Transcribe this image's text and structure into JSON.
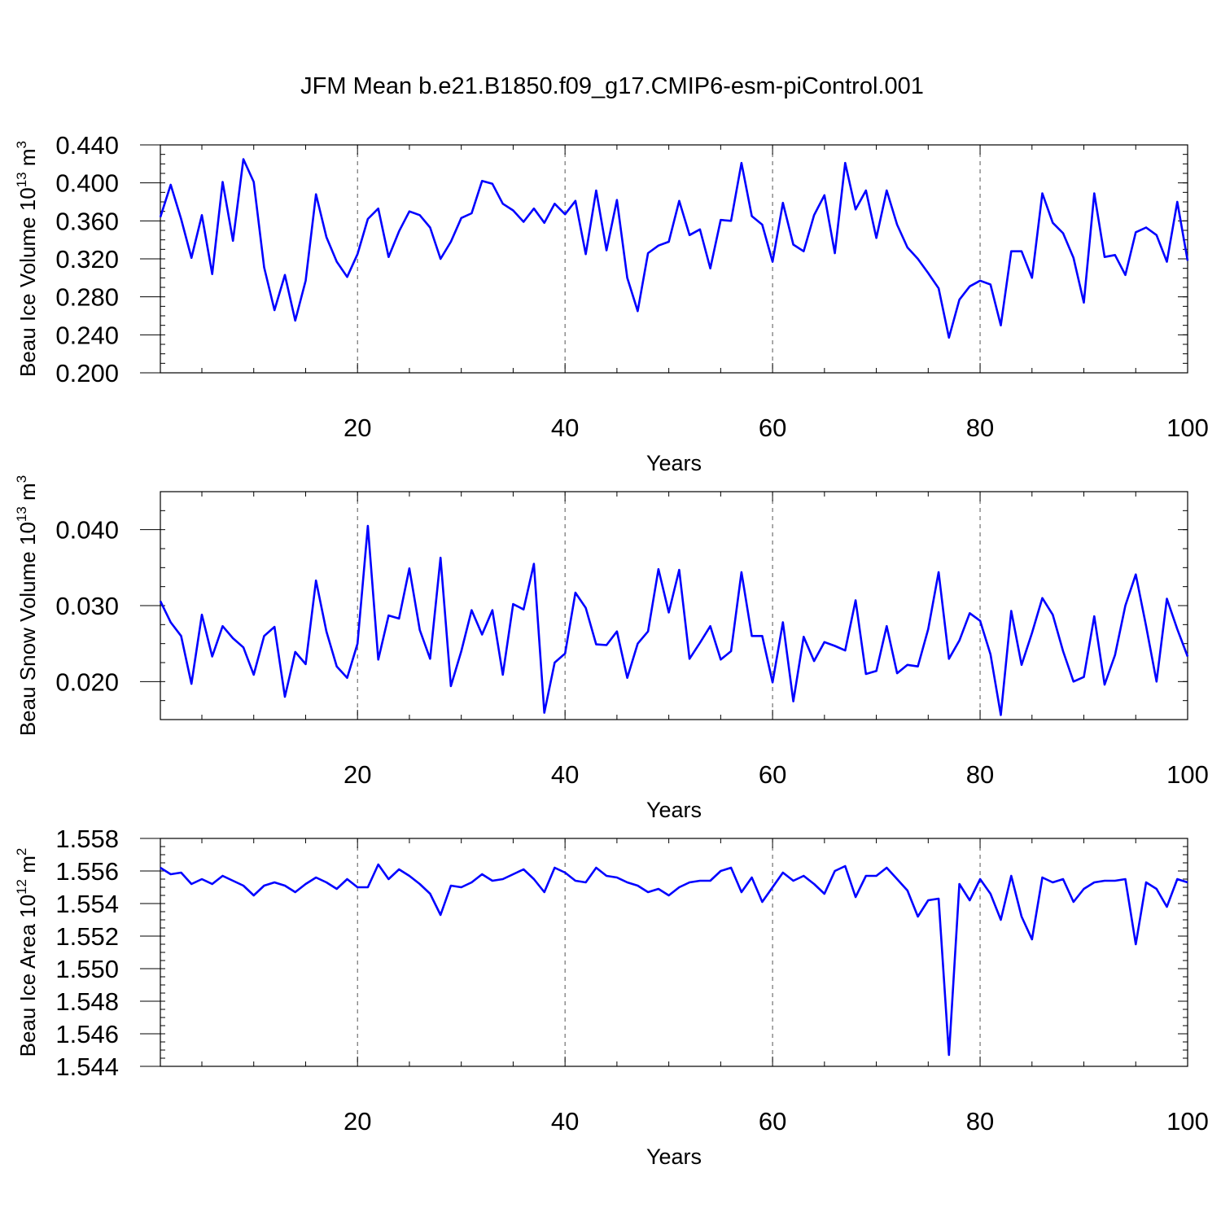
{
  "title": "JFM Mean b.e21.B1850.f09_g17.CMIP6-esm-piControl.001",
  "line_color": "#0000ff",
  "chart_data": [
    {
      "type": "line",
      "ylabel_main": "Beau Ice Volume 10",
      "ylabel_exp": "13",
      "ylabel_unit": " m",
      "ylabel_unit_exp": "3",
      "xlabel": "Years",
      "xlim": [
        1,
        100
      ],
      "ylim": [
        0.2,
        0.44
      ],
      "xticks": [
        20,
        40,
        60,
        80,
        100
      ],
      "yticks": [
        0.2,
        0.24,
        0.28,
        0.32,
        0.36,
        0.4,
        0.44
      ],
      "yticklabels": [
        "0.200",
        "0.240",
        "0.280",
        "0.320",
        "0.360",
        "0.400",
        "0.440"
      ],
      "yminor": 0.01,
      "grid_x_dashed": [
        20,
        40,
        60,
        80
      ],
      "series": [
        {
          "name": "Beau Ice Volume",
          "x_start": 1,
          "values": [
            0.364,
            0.398,
            0.362,
            0.321,
            0.366,
            0.304,
            0.401,
            0.339,
            0.425,
            0.401,
            0.311,
            0.266,
            0.303,
            0.255,
            0.297,
            0.388,
            0.343,
            0.317,
            0.301,
            0.325,
            0.362,
            0.373,
            0.322,
            0.349,
            0.37,
            0.366,
            0.353,
            0.32,
            0.338,
            0.363,
            0.368,
            0.402,
            0.399,
            0.378,
            0.371,
            0.359,
            0.373,
            0.358,
            0.378,
            0.367,
            0.381,
            0.325,
            0.392,
            0.329,
            0.382,
            0.3,
            0.265,
            0.326,
            0.334,
            0.338,
            0.381,
            0.345,
            0.351,
            0.31,
            0.361,
            0.36,
            0.421,
            0.365,
            0.356,
            0.317,
            0.379,
            0.335,
            0.328,
            0.366,
            0.387,
            0.326,
            0.421,
            0.372,
            0.392,
            0.342,
            0.392,
            0.356,
            0.332,
            0.32,
            0.305,
            0.289,
            0.237,
            0.277,
            0.291,
            0.297,
            0.293,
            0.25,
            0.328,
            0.328,
            0.3,
            0.389,
            0.358,
            0.347,
            0.321,
            0.274,
            0.389,
            0.322,
            0.324,
            0.303,
            0.348,
            0.353,
            0.345,
            0.317,
            0.38,
            0.318
          ]
        }
      ]
    },
    {
      "type": "line",
      "ylabel_main": "Beau Snow Volume 10",
      "ylabel_exp": "13",
      "ylabel_unit": " m",
      "ylabel_unit_exp": "3",
      "xlabel": "Years",
      "xlim": [
        1,
        100
      ],
      "ylim": [
        0.015,
        0.045
      ],
      "xticks": [
        20,
        40,
        60,
        80,
        100
      ],
      "yticks": [
        0.02,
        0.03,
        0.04
      ],
      "yticklabels": [
        "0.020",
        "0.030",
        "0.040"
      ],
      "yminor": 0.0025,
      "grid_x_dashed": [
        20,
        40,
        60,
        80
      ],
      "series": [
        {
          "name": "Beau Snow Volume",
          "x_start": 1,
          "values": [
            0.0306,
            0.0278,
            0.026,
            0.0197,
            0.0288,
            0.0233,
            0.0273,
            0.0257,
            0.0245,
            0.0209,
            0.026,
            0.0272,
            0.018,
            0.0239,
            0.0223,
            0.0333,
            0.0266,
            0.022,
            0.0205,
            0.025,
            0.0405,
            0.0229,
            0.0287,
            0.0283,
            0.0349,
            0.0268,
            0.023,
            0.0363,
            0.0194,
            0.024,
            0.0294,
            0.0262,
            0.0294,
            0.0209,
            0.0302,
            0.0295,
            0.0355,
            0.0159,
            0.0225,
            0.0237,
            0.0317,
            0.0297,
            0.0249,
            0.0248,
            0.0266,
            0.0205,
            0.025,
            0.0266,
            0.0348,
            0.0291,
            0.0347,
            0.023,
            0.0251,
            0.0273,
            0.0229,
            0.024,
            0.0344,
            0.026,
            0.026,
            0.0199,
            0.0278,
            0.0174,
            0.0259,
            0.0227,
            0.0252,
            0.0247,
            0.0241,
            0.0307,
            0.021,
            0.0214,
            0.0273,
            0.0211,
            0.0222,
            0.022,
            0.0269,
            0.0344,
            0.023,
            0.0254,
            0.029,
            0.028,
            0.0236,
            0.0156,
            0.0293,
            0.0222,
            0.0264,
            0.031,
            0.0288,
            0.024,
            0.02,
            0.0206,
            0.0286,
            0.0196,
            0.0235,
            0.03,
            0.0341,
            0.0273,
            0.02,
            0.0309,
            0.0269,
            0.0233
          ]
        }
      ]
    },
    {
      "type": "line",
      "ylabel_main": "Beau Ice Area 10",
      "ylabel_exp": "12",
      "ylabel_unit": " m",
      "ylabel_unit_exp": "2",
      "xlabel": "Years",
      "xlim": [
        1,
        100
      ],
      "ylim": [
        1.544,
        1.558
      ],
      "xticks": [
        20,
        40,
        60,
        80,
        100
      ],
      "yticks": [
        1.544,
        1.546,
        1.548,
        1.55,
        1.552,
        1.554,
        1.556,
        1.558
      ],
      "yticklabels": [
        "1.544",
        "1.546",
        "1.548",
        "1.550",
        "1.552",
        "1.554",
        "1.556",
        "1.558"
      ],
      "yminor": 0.0005,
      "grid_x_dashed": [
        20,
        40,
        60,
        80
      ],
      "series": [
        {
          "name": "Beau Ice Area",
          "x_start": 1,
          "values": [
            1.5562,
            1.5558,
            1.5559,
            1.5552,
            1.5555,
            1.5552,
            1.5557,
            1.5554,
            1.5551,
            1.5545,
            1.5551,
            1.5553,
            1.5551,
            1.5547,
            1.5552,
            1.5556,
            1.5553,
            1.5549,
            1.5555,
            1.555,
            1.555,
            1.5564,
            1.5555,
            1.5561,
            1.5557,
            1.5552,
            1.5546,
            1.5533,
            1.5551,
            1.555,
            1.5553,
            1.5558,
            1.5554,
            1.5555,
            1.5558,
            1.5561,
            1.5555,
            1.5547,
            1.5562,
            1.5559,
            1.5554,
            1.5553,
            1.5562,
            1.5557,
            1.5556,
            1.5553,
            1.5551,
            1.5547,
            1.5549,
            1.5545,
            1.555,
            1.5553,
            1.5554,
            1.5554,
            1.556,
            1.5562,
            1.5547,
            1.5556,
            1.5541,
            1.555,
            1.5559,
            1.5554,
            1.5557,
            1.5552,
            1.5546,
            1.556,
            1.5563,
            1.5544,
            1.5557,
            1.5557,
            1.5562,
            1.5555,
            1.5548,
            1.5532,
            1.5542,
            1.5543,
            1.5447,
            1.5552,
            1.5542,
            1.5555,
            1.5546,
            1.553,
            1.5557,
            1.5532,
            1.5518,
            1.5556,
            1.5553,
            1.5555,
            1.5541,
            1.5549,
            1.5553,
            1.5554,
            1.5554,
            1.5555,
            1.5515,
            1.5553,
            1.5549,
            1.5538,
            1.5555,
            1.5553
          ]
        }
      ]
    }
  ]
}
